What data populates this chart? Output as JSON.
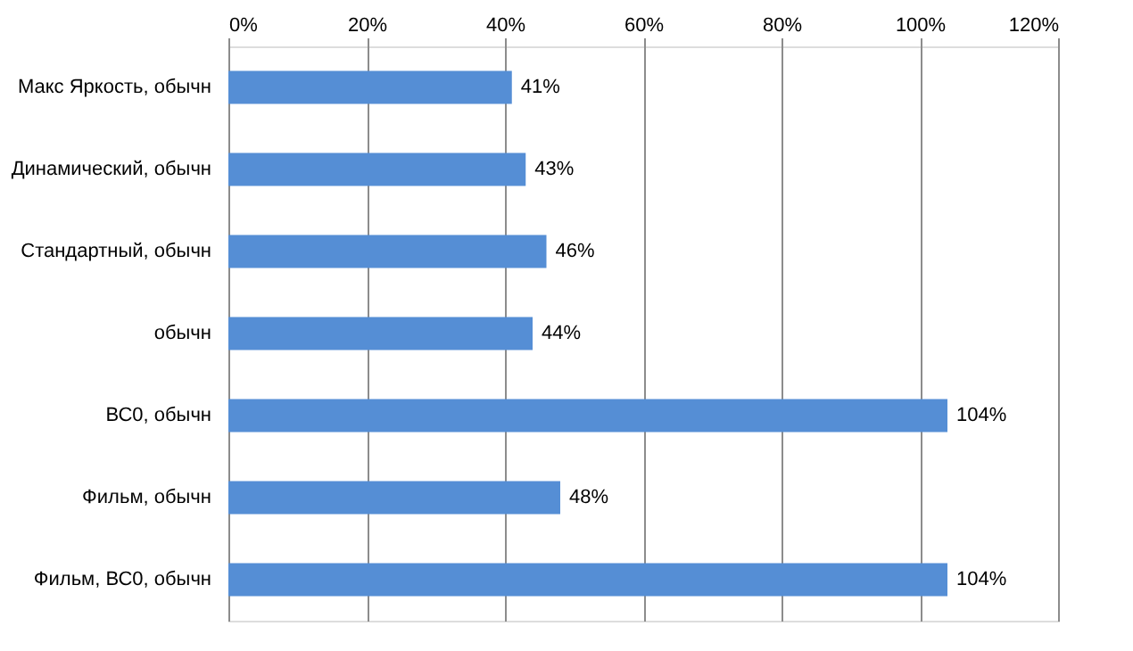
{
  "chart_data": {
    "type": "bar",
    "orientation": "horizontal",
    "categories": [
      "Макс Яркость, обычн",
      "Динамический, обычн",
      "Стандартный, обычн",
      "обычн",
      "ВС0, обычн",
      "Фильм, обычн",
      "Фильм, ВС0, обычн"
    ],
    "values": [
      41,
      43,
      46,
      44,
      104,
      48,
      104
    ],
    "value_labels": [
      "41%",
      "43%",
      "46%",
      "44%",
      "104%",
      "48%",
      "104%"
    ],
    "color": "#558ed5",
    "xlim": [
      0,
      120
    ],
    "xticks": [
      {
        "value": 0,
        "label": "0%"
      },
      {
        "value": 20,
        "label": "20%"
      },
      {
        "value": 40,
        "label": "40%"
      },
      {
        "value": 60,
        "label": "60%"
      },
      {
        "value": 80,
        "label": "80%"
      },
      {
        "value": 100,
        "label": "100%"
      },
      {
        "value": 120,
        "label": "120%"
      }
    ],
    "grid": "x"
  }
}
